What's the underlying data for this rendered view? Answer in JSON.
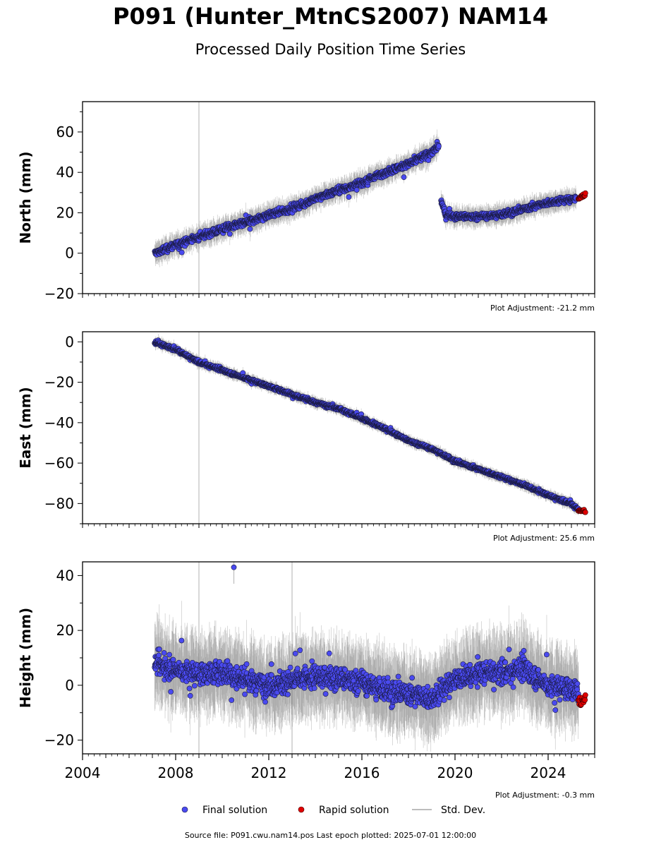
{
  "title": "P091 (Hunter_MtnCS2007) NAM14",
  "subtitle": "Processed Daily Position Time Series",
  "source_line": "Source file: P091.cwu.nam14.pos  Last epoch plotted: 2025-07-01 12:00:00",
  "colors": {
    "final": "#4a4af0",
    "rapid": "#e00000",
    "stddev": "#bdbdbd"
  },
  "chart_data": [
    {
      "type": "scatter",
      "ylabel": "North (mm)",
      "adjustment": "Plot Adjustment: -21.2 mm",
      "xlim": [
        2004,
        2026
      ],
      "ylim": [
        -20,
        75
      ],
      "yticks": [
        -20,
        0,
        20,
        40,
        60
      ],
      "yticklabels": [
        "−20",
        "0",
        "20",
        "40",
        "60"
      ],
      "vlines": [
        2009.0
      ],
      "series": [
        {
          "name": "Final solution",
          "segments": [
            {
              "x": [
                2007.1,
                2008.0,
                2009.0,
                2010.0,
                2011.0,
                2012.0,
                2013.0,
                2014.0,
                2015.0,
                2016.0,
                2017.0,
                2018.0,
                2019.0,
                2019.3
              ],
              "y": [
                0,
                4,
                8,
                12,
                15,
                19,
                22,
                27,
                31,
                35,
                40,
                44,
                50,
                53
              ],
              "noise": 2.2
            },
            {
              "x": [
                2019.4,
                2019.6,
                2020.0,
                2021.0,
                2022.0,
                2023.0,
                2024.0,
                2025.2
              ],
              "y": [
                26,
                19,
                18,
                18,
                19,
                22,
                25,
                27
              ],
              "noise": 2.0
            }
          ]
        },
        {
          "name": "Rapid solution",
          "x": [
            2025.3,
            2025.6
          ],
          "y": [
            27,
            29
          ],
          "noise": 1.2
        }
      ]
    },
    {
      "type": "scatter",
      "ylabel": "East (mm)",
      "adjustment": "Plot Adjustment: 25.6 mm",
      "xlim": [
        2004,
        2026
      ],
      "ylim": [
        -90,
        5
      ],
      "yticks": [
        -80,
        -60,
        -40,
        -20,
        0
      ],
      "yticklabels": [
        "−80",
        "−60",
        "−40",
        "−20",
        "0"
      ],
      "vlines": [
        2009.0
      ],
      "series": [
        {
          "name": "Final solution",
          "segments": [
            {
              "x": [
                2007.1,
                2008.0,
                2009.0,
                2010.0,
                2011.0,
                2012.0,
                2013.0,
                2014.0,
                2015.0,
                2016.0,
                2017.0,
                2018.0,
                2019.0,
                2020.0,
                2021.0,
                2022.0,
                2023.0,
                2024.0,
                2025.0,
                2025.3
              ],
              "y": [
                0,
                -4,
                -10,
                -14,
                -18,
                -22,
                -26,
                -30,
                -33,
                -38,
                -43,
                -49,
                -53,
                -59,
                -63,
                -67,
                -71,
                -76,
                -80,
                -83
              ],
              "noise": 1.1
            }
          ]
        },
        {
          "name": "Rapid solution",
          "x": [
            2025.3,
            2025.6
          ],
          "y": [
            -83,
            -84
          ],
          "noise": 0.8
        }
      ]
    },
    {
      "type": "scatter",
      "ylabel": "Height (mm)",
      "adjustment": "Plot Adjustment: -0.3 mm",
      "xlim": [
        2004,
        2026
      ],
      "ylim": [
        -25,
        45
      ],
      "yticks": [
        -20,
        0,
        20,
        40
      ],
      "yticklabels": [
        "−20",
        "0",
        "20",
        "40"
      ],
      "xticks": [
        2004,
        2008,
        2012,
        2016,
        2020,
        2024
      ],
      "xticklabels": [
        "2004",
        "2008",
        "2012",
        "2016",
        "2020",
        "2024"
      ],
      "vlines": [
        2009.0,
        2013.0
      ],
      "outliers": [
        {
          "x": 2010.5,
          "y": 43
        }
      ],
      "series": [
        {
          "name": "Final solution",
          "segments": [
            {
              "x": [
                2007.1,
                2008.0,
                2009.0,
                2010.0,
                2011.0,
                2012.0,
                2013.0,
                2014.0,
                2015.0,
                2016.0,
                2017.0,
                2018.0,
                2019.0,
                2020.0,
                2021.0,
                2022.0,
                2023.0,
                2024.0,
                2025.3
              ],
              "y": [
                8,
                6,
                4,
                5,
                2,
                0,
                2,
                3,
                2,
                1,
                -2,
                -3,
                -5,
                2,
                4,
                5,
                6,
                0,
                -2
              ],
              "noise": 5.5
            }
          ]
        },
        {
          "name": "Rapid solution",
          "x": [
            2025.3,
            2025.6
          ],
          "y": [
            -6,
            -6
          ],
          "noise": 3.0
        }
      ]
    }
  ],
  "legend": {
    "placement": "bottom",
    "final_label": "Final solution",
    "rapid_label": "Rapid solution",
    "stddev_label": "Std. Dev."
  }
}
